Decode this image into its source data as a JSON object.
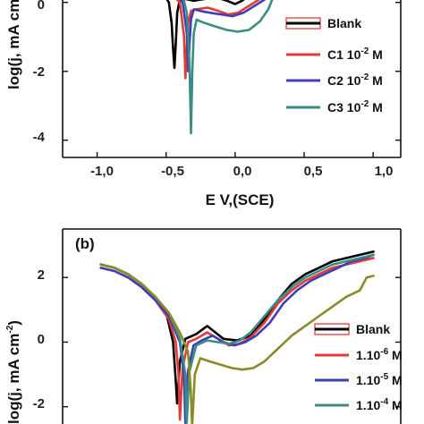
{
  "chart_data": [
    {
      "type": "line",
      "panel_label": "",
      "xlabel": "E V,(SCE)",
      "ylabel": "log(j, mA cm",
      "xlim": [
        -1.25,
        1.2
      ],
      "ylim": [
        -4.5,
        0.2
      ],
      "xticks": [
        -1.0,
        -0.5,
        0.0,
        0.5,
        1.0
      ],
      "xtick_labels": [
        "-1,0",
        "-0,5",
        "0,0",
        "0,5",
        "1,0"
      ],
      "yticks": [
        -4,
        -2,
        0
      ],
      "ytick_labels": [
        "-4",
        "-2",
        "0"
      ],
      "legend_placement": "right",
      "series": [
        {
          "name": "Blank",
          "color": "#000000",
          "x": [
            -0.52,
            -0.48,
            -0.46,
            -0.45,
            -0.44,
            -0.43,
            -0.42,
            -0.4,
            -0.36,
            -0.3,
            -0.22,
            -0.14,
            -0.06,
            0.0,
            0.05,
            0.1,
            0.13
          ],
          "y": [
            0.25,
            0.0,
            -0.6,
            -1.3,
            -1.9,
            -1.2,
            -0.3,
            0.1,
            0.1,
            0.05,
            0.1,
            0.15,
            0.05,
            -0.05,
            0.05,
            0.2,
            0.3
          ]
        },
        {
          "name": "C1 10",
          "sup": "-2",
          "unit": "M",
          "color": "#e53935",
          "x": [
            -0.45,
            -0.4,
            -0.37,
            -0.36,
            -0.35,
            -0.34,
            -0.32,
            -0.28,
            -0.2,
            -0.12,
            -0.05,
            0.02,
            0.1,
            0.18,
            0.24
          ],
          "y": [
            0.2,
            0.0,
            -1.0,
            -2.2,
            -1.3,
            -0.6,
            -0.25,
            -0.2,
            -0.15,
            -0.25,
            -0.35,
            -0.3,
            -0.1,
            0.1,
            0.3
          ]
        },
        {
          "name": "C2 10",
          "sup": "-2",
          "unit": "M",
          "color": "#3f3fb5",
          "x": [
            -0.42,
            -0.38,
            -0.35,
            -0.34,
            -0.33,
            -0.32,
            -0.3,
            -0.25,
            -0.18,
            -0.1,
            -0.02,
            0.06,
            0.14,
            0.22,
            0.27
          ],
          "y": [
            0.2,
            0.0,
            -0.9,
            -2.0,
            -1.2,
            -0.5,
            -0.2,
            -0.25,
            -0.3,
            -0.35,
            -0.4,
            -0.3,
            -0.1,
            0.1,
            0.3
          ]
        },
        {
          "name": "C3 10",
          "sup": "-2",
          "unit": "M",
          "color": "#3a8c84",
          "x": [
            -0.38,
            -0.35,
            -0.33,
            -0.32,
            -0.31,
            -0.3,
            -0.28,
            -0.22,
            -0.14,
            -0.06,
            0.02,
            0.1,
            0.18,
            0.24,
            0.28
          ],
          "y": [
            0.2,
            -0.3,
            -1.8,
            -3.8,
            -2.0,
            -0.9,
            -0.5,
            -0.6,
            -0.7,
            -0.8,
            -0.85,
            -0.8,
            -0.55,
            -0.2,
            0.2
          ]
        }
      ]
    },
    {
      "type": "line",
      "panel_label": "(b)",
      "xlabel": "",
      "ylabel": "log(j, mA cm",
      "ylabel_sup": "-2",
      "xlim": [
        -1.28,
        1.2
      ],
      "ylim": [
        -2.7,
        3.5
      ],
      "yticks": [
        -2,
        0,
        2
      ],
      "ytick_labels": [
        "-2",
        "0",
        "2"
      ],
      "legend_placement": "right",
      "series": [
        {
          "name": "Blank",
          "color": "#000000",
          "x": [
            -1.0,
            -0.9,
            -0.8,
            -0.7,
            -0.6,
            -0.52,
            -0.47,
            -0.45,
            -0.44,
            -0.42,
            -0.38,
            -0.3,
            -0.22,
            -0.16,
            -0.1,
            0.0,
            0.1,
            0.2,
            0.3,
            0.4,
            0.5,
            0.6,
            0.7,
            0.8,
            0.9,
            1.0
          ],
          "y": [
            2.4,
            2.3,
            2.1,
            1.8,
            1.4,
            0.9,
            0.0,
            -1.2,
            -1.9,
            -0.6,
            0.1,
            0.25,
            0.5,
            0.3,
            0.1,
            0.05,
            0.2,
            0.7,
            1.3,
            1.8,
            2.1,
            2.3,
            2.5,
            2.6,
            2.7,
            2.8
          ]
        },
        {
          "name": "1.10",
          "sup": "-6",
          "unit": "M",
          "color": "#e53935",
          "x": [
            -1.0,
            -0.9,
            -0.8,
            -0.7,
            -0.6,
            -0.5,
            -0.45,
            -0.43,
            -0.42,
            -0.4,
            -0.36,
            -0.3,
            -0.22,
            -0.14,
            -0.06,
            0.02,
            0.1,
            0.2,
            0.3,
            0.4,
            0.5,
            0.6,
            0.7,
            0.8,
            0.9,
            1.0
          ],
          "y": [
            2.3,
            2.2,
            2.0,
            1.7,
            1.3,
            0.7,
            0.0,
            -1.0,
            -2.4,
            -0.8,
            0.0,
            0.1,
            0.3,
            0.1,
            -0.1,
            -0.05,
            0.15,
            0.6,
            1.2,
            1.6,
            1.9,
            2.1,
            2.3,
            2.4,
            2.5,
            2.6
          ]
        },
        {
          "name": "1.10",
          "sup": "-5",
          "unit": "M",
          "color": "#3f3fb5",
          "x": [
            -1.0,
            -0.9,
            -0.8,
            -0.7,
            -0.6,
            -0.5,
            -0.42,
            -0.39,
            -0.38,
            -0.36,
            -0.32,
            -0.26,
            -0.18,
            -0.1,
            -0.02,
            0.06,
            0.14,
            0.24,
            0.34,
            0.44,
            0.54,
            0.64,
            0.74,
            0.84,
            0.94,
            1.0
          ],
          "y": [
            2.3,
            2.2,
            2.0,
            1.7,
            1.3,
            0.8,
            0.0,
            -1.0,
            -2.5,
            -0.9,
            -0.1,
            0.05,
            0.2,
            0.0,
            -0.1,
            0.0,
            0.2,
            0.6,
            1.2,
            1.6,
            1.9,
            2.1,
            2.3,
            2.5,
            2.6,
            2.7
          ]
        },
        {
          "name": "1.10",
          "sup": "-4",
          "unit": "M",
          "color": "#3a8c84",
          "x": [
            -1.0,
            -0.9,
            -0.8,
            -0.7,
            -0.6,
            -0.5,
            -0.42,
            -0.38,
            -0.37,
            -0.35,
            -0.3,
            -0.22,
            -0.14,
            -0.06,
            0.02,
            0.1,
            0.2,
            0.3,
            0.4,
            0.5,
            0.6,
            0.7,
            0.8,
            0.9,
            1.0
          ],
          "y": [
            2.4,
            2.3,
            2.1,
            1.8,
            1.4,
            0.9,
            0.1,
            -1.0,
            -2.5,
            -0.9,
            -0.1,
            0.05,
            0.0,
            -0.05,
            0.05,
            0.3,
            0.8,
            1.3,
            1.7,
            2.0,
            2.2,
            2.4,
            2.5,
            2.6,
            2.7
          ]
        },
        {
          "name": "",
          "color": "#8a8a28",
          "x": [
            -1.0,
            -0.9,
            -0.8,
            -0.7,
            -0.6,
            -0.5,
            -0.42,
            -0.36,
            -0.34,
            -0.33,
            -0.31,
            -0.27,
            -0.2,
            -0.12,
            -0.04,
            0.04,
            0.12,
            0.2,
            0.3,
            0.4,
            0.5,
            0.6,
            0.7,
            0.8,
            0.9,
            0.95,
            1.0
          ],
          "y": [
            2.4,
            2.3,
            2.1,
            1.8,
            1.4,
            0.9,
            0.3,
            -0.3,
            -1.5,
            -2.6,
            -1.0,
            -0.5,
            -0.6,
            -0.7,
            -0.8,
            -0.85,
            -0.8,
            -0.6,
            -0.2,
            0.2,
            0.5,
            0.8,
            1.1,
            1.4,
            1.6,
            2.0,
            2.05
          ]
        }
      ]
    }
  ]
}
